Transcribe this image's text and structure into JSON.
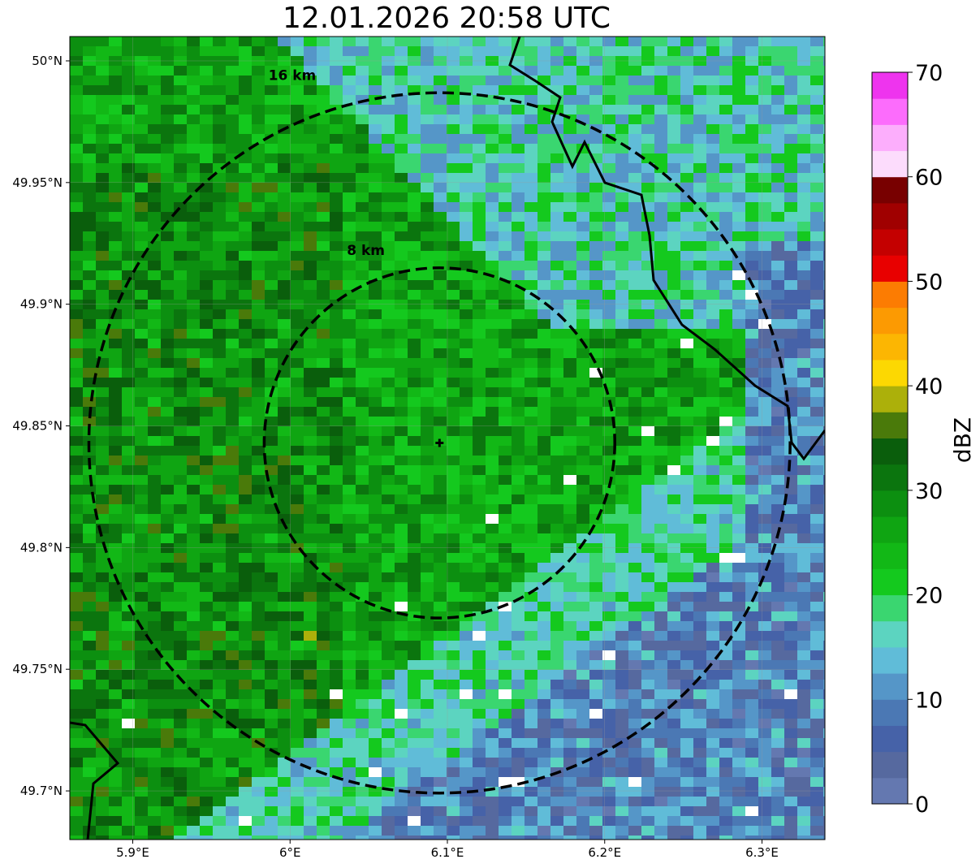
{
  "title": "12.01.2026 20:58 UTC",
  "map": {
    "lon_range": [
      5.86,
      6.34
    ],
    "lat_range": [
      49.68,
      50.01
    ],
    "radar_site": {
      "lon": 6.095,
      "lat": 49.843
    },
    "x_ticks": [
      {
        "value": 5.9,
        "label": "5.9°E"
      },
      {
        "value": 6.0,
        "label": "6°E"
      },
      {
        "value": 6.1,
        "label": "6.1°E"
      },
      {
        "value": 6.2,
        "label": "6.2°E"
      },
      {
        "value": 6.3,
        "label": "6.3°E"
      }
    ],
    "y_ticks": [
      {
        "value": 50.0,
        "label": "50°N"
      },
      {
        "value": 49.95,
        "label": "49.95°N"
      },
      {
        "value": 49.9,
        "label": "49.9°N"
      },
      {
        "value": 49.85,
        "label": "49.85°N"
      },
      {
        "value": 49.8,
        "label": "49.8°N"
      },
      {
        "value": 49.75,
        "label": "49.75°N"
      },
      {
        "value": 49.7,
        "label": "49.7°N"
      }
    ],
    "range_rings": [
      {
        "km": 8,
        "label": "8 km"
      },
      {
        "km": 16,
        "label": "16 km"
      }
    ],
    "precip_pattern": "moderate reflectivity (20-35 dBZ) in west/northwest, weaker (0-15 dBZ) in southeast",
    "border": "national border line along the northeast and southwest corners"
  },
  "colorbar": {
    "label": "dBZ",
    "min": 0,
    "max": 70,
    "step": 2.5,
    "tick_values": [
      0,
      10,
      20,
      30,
      40,
      50,
      60,
      70
    ],
    "tick_labels": [
      "0",
      "10",
      "20",
      "30",
      "40",
      "50",
      "60",
      "70"
    ],
    "colors": [
      "#6478b0",
      "#56699f",
      "#4662a8",
      "#4b78b4",
      "#5596c8",
      "#60bcd8",
      "#5cd4c0",
      "#3ad670",
      "#14c91e",
      "#12b816",
      "#0fa512",
      "#0c8f10",
      "#0b750e",
      "#0a5e0c",
      "#4a7a0a",
      "#acb00a",
      "#fcd802",
      "#fcb602",
      "#fc9a02",
      "#fc7c02",
      "#e80000",
      "#c40000",
      "#a00000",
      "#780000",
      "#fcdcfc",
      "#fcaefc",
      "#fc6cfc",
      "#ee34ee"
    ]
  }
}
